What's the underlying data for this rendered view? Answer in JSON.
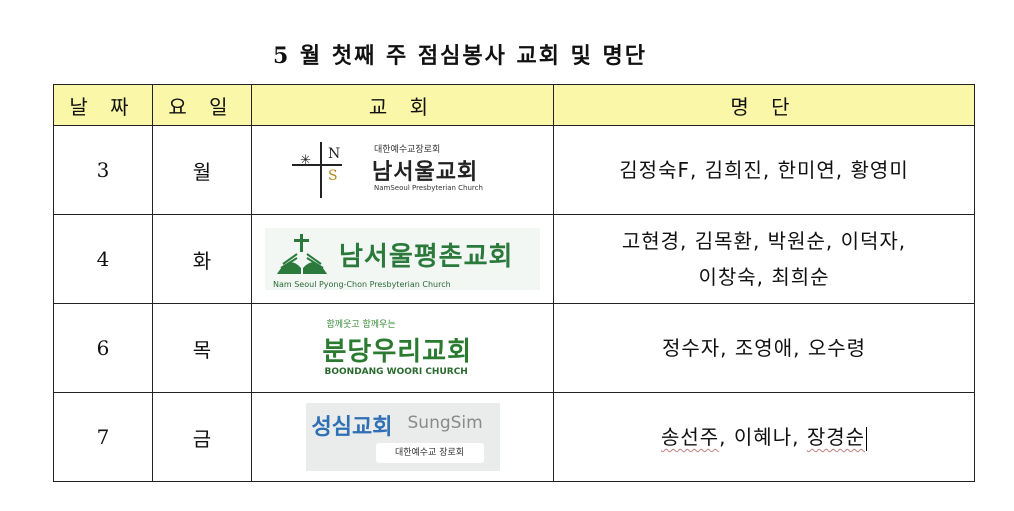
{
  "title": "5 월 첫째 주 점심봉사 교회 및 명단",
  "table": {
    "headers": [
      "날 짜",
      "요 일",
      "교 회",
      "명 단"
    ],
    "rows": [
      {
        "date": "3",
        "day": "월",
        "church_logo": {
          "top_text": "대한예수교장로회",
          "name": "남서울교회",
          "english": "NamSeoul Presbyterian Church",
          "mark_n": "N",
          "mark_s": "S",
          "icon": "cross-star-icon"
        },
        "names_line1": "김정숙F, 김희진, 한미연, 황영미",
        "names_line2": ""
      },
      {
        "date": "4",
        "day": "화",
        "church_logo": {
          "name": "남서울평촌교회",
          "english": "Nam Seoul Pyong-Chon Presbyterian Church",
          "icon": "open-book-cross-icon",
          "color": "#2b7a3c"
        },
        "names_line1": "고현경, 김목환, 박원순, 이덕자,",
        "names_line2": "이창숙, 최희순"
      },
      {
        "date": "6",
        "day": "목",
        "church_logo": {
          "top_text": "함께웃고 함께우는",
          "name": "분당우리교회",
          "english": "BOONDANG WOORI CHURCH",
          "color": "#2a7a2f"
        },
        "names_line1": "정수자, 조영애, 오수령",
        "names_line2": ""
      },
      {
        "date": "7",
        "day": "금",
        "church_logo": {
          "name": "성심교회",
          "english": "SungSim",
          "sub_text": "대한예수교 장로회",
          "color": "#2e6fb5"
        },
        "names": [
          "송선주",
          "이혜나",
          "장경순"
        ],
        "separator": ", "
      }
    ]
  }
}
